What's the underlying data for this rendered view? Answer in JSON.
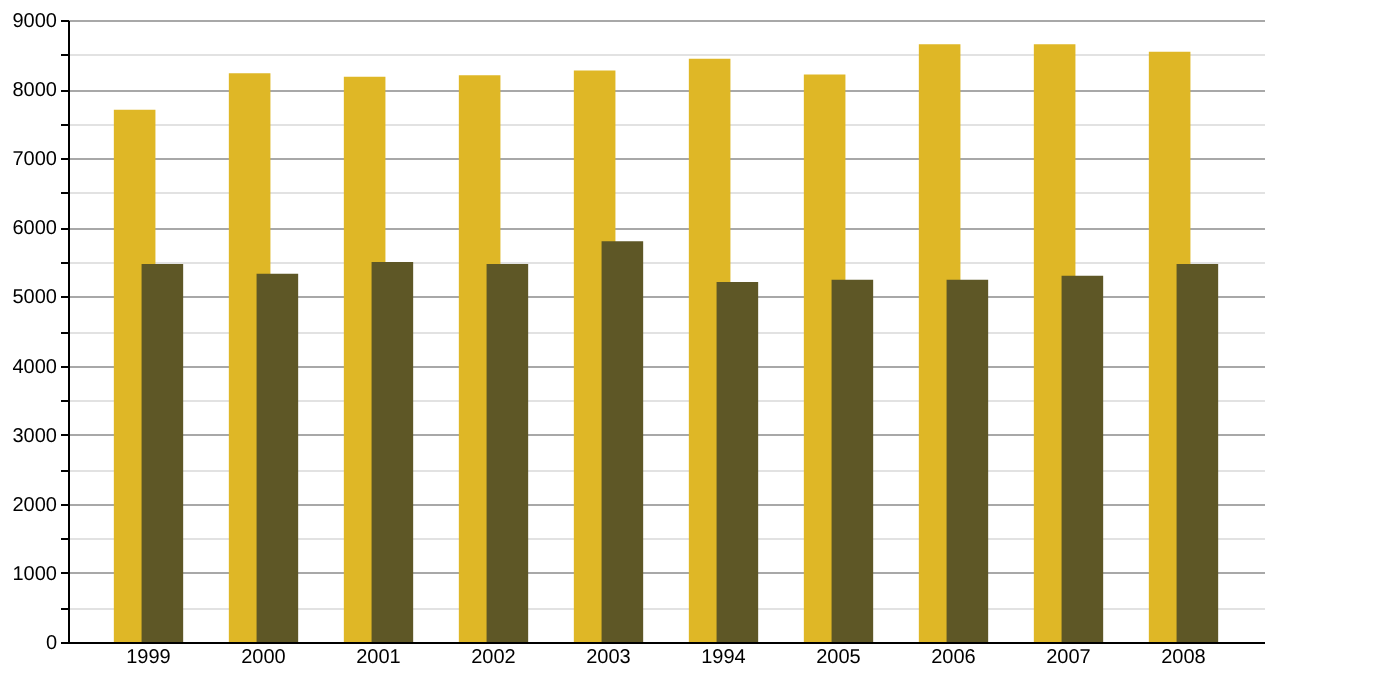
{
  "chart_data": {
    "type": "bar",
    "categories": [
      "1999",
      "2000",
      "2001",
      "2002",
      "2003",
      "1994",
      "2005",
      "2006",
      "2007",
      "2008"
    ],
    "series": [
      {
        "color": "#dfb726",
        "values": [
          7700,
          8230,
          8180,
          8200,
          8270,
          8440,
          8210,
          8650,
          8650,
          8540
        ]
      },
      {
        "color": "#5e5726",
        "values": [
          5470,
          5330,
          5500,
          5470,
          5800,
          5210,
          5240,
          5240,
          5300,
          5470
        ]
      }
    ],
    "ylim": [
      0,
      9000
    ],
    "yticks": [
      0,
      {
        "value": 500,
        "label": null
      },
      1000,
      {
        "value": 1500,
        "label": null
      },
      2000,
      {
        "value": 2500,
        "label": null
      },
      3000,
      {
        "value": 3500,
        "label": null
      },
      4000,
      {
        "value": 4500,
        "label": null
      },
      5000,
      {
        "value": 5500,
        "label": null
      },
      6000,
      {
        "value": 6500,
        "label": null
      },
      7000,
      {
        "value": 7500,
        "label": null
      },
      8000,
      {
        "value": 8500,
        "label": null
      },
      9000
    ],
    "grid": true
  }
}
